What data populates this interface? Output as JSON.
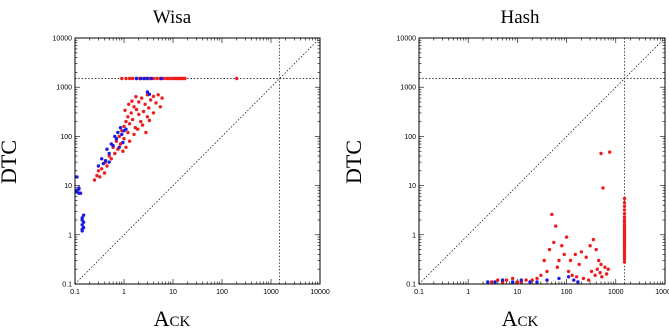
{
  "chart_data": [
    {
      "type": "scatter",
      "title": "Wisa",
      "xlabel": "Ack",
      "ylabel": "DTC",
      "xscale": "log",
      "yscale": "log",
      "xlim": [
        0.1,
        10000
      ],
      "ylim": [
        0.1,
        10000
      ],
      "xticks": [
        "0.1",
        "1",
        "10",
        "100",
        "1000",
        "10000"
      ],
      "yticks": [
        "0.1",
        "1",
        "10",
        "100",
        "1000",
        "10000"
      ],
      "reference": {
        "diagonal": true,
        "x": 1500,
        "y": 1500
      },
      "colors": {
        "red": "#ee1c1c",
        "blue": "#1c1ce0"
      },
      "series": [
        {
          "color": "red",
          "points": [
            [
              0.25,
              13
            ],
            [
              0.28,
              16
            ],
            [
              0.3,
              20
            ],
            [
              0.32,
              15
            ],
            [
              0.35,
              22
            ],
            [
              0.4,
              18
            ],
            [
              0.42,
              30
            ],
            [
              0.45,
              25
            ],
            [
              0.5,
              40
            ],
            [
              0.55,
              35
            ],
            [
              0.6,
              60
            ],
            [
              0.65,
              45
            ],
            [
              0.7,
              80
            ],
            [
              0.75,
              55
            ],
            [
              0.8,
              100
            ],
            [
              0.85,
              70
            ],
            [
              0.9,
              130
            ],
            [
              1.0,
              90
            ],
            [
              1.0,
              160
            ],
            [
              1.1,
              200
            ],
            [
              1.2,
              120
            ],
            [
              1.2,
              250
            ],
            [
              1.3,
              180
            ],
            [
              1.4,
              300
            ],
            [
              1.5,
              220
            ],
            [
              1.6,
              400
            ],
            [
              1.7,
              150
            ],
            [
              1.8,
              350
            ],
            [
              2.0,
              280
            ],
            [
              2.0,
              500
            ],
            [
              2.2,
              200
            ],
            [
              2.3,
              600
            ],
            [
              2.5,
              320
            ],
            [
              2.7,
              450
            ],
            [
              3.0,
              250
            ],
            [
              3.0,
              700
            ],
            [
              3.2,
              380
            ],
            [
              3.5,
              550
            ],
            [
              4.0,
              300
            ],
            [
              4.0,
              650
            ],
            [
              4.5,
              480
            ],
            [
              5.0,
              700
            ],
            [
              5.5,
              400
            ],
            [
              6.0,
              600
            ],
            [
              1.3,
              80
            ],
            [
              1.6,
              110
            ],
            [
              1.9,
              140
            ],
            [
              2.4,
              170
            ],
            [
              1.1,
              60
            ],
            [
              0.95,
              50
            ],
            [
              2.8,
              120
            ],
            [
              3.3,
              210
            ],
            [
              1.05,
              340
            ],
            [
              1.25,
              450
            ],
            [
              1.45,
              520
            ],
            [
              1.75,
              640
            ],
            [
              0.9,
              1500
            ],
            [
              1.1,
              1500
            ],
            [
              1.3,
              1500
            ],
            [
              1.5,
              1500
            ],
            [
              1.8,
              1500
            ],
            [
              2.1,
              1500
            ],
            [
              2.5,
              1500
            ],
            [
              2.9,
              1500
            ],
            [
              3.4,
              1500
            ],
            [
              4.0,
              1500
            ],
            [
              4.7,
              1500
            ],
            [
              5.5,
              1500
            ],
            [
              6.5,
              1500
            ],
            [
              7.5,
              1500
            ],
            [
              8.5,
              1500
            ],
            [
              9.5,
              1500
            ],
            [
              10.5,
              1500
            ],
            [
              11.5,
              1500
            ],
            [
              12.5,
              1500
            ],
            [
              13.5,
              1500
            ],
            [
              14.5,
              1500
            ],
            [
              15.5,
              1500
            ],
            [
              16.5,
              1500
            ],
            [
              17.5,
              1500
            ],
            [
              200,
              1500
            ]
          ]
        },
        {
          "color": "blue",
          "points": [
            [
              0.11,
              15
            ],
            [
              0.11,
              8
            ],
            [
              0.12,
              7
            ],
            [
              0.11,
              7.5
            ],
            [
              0.12,
              8.5
            ],
            [
              0.13,
              7
            ],
            [
              0.12,
              9
            ],
            [
              0.14,
              1.3
            ],
            [
              0.14,
              1.6
            ],
            [
              0.15,
              1.8
            ],
            [
              0.14,
              2.0
            ],
            [
              0.15,
              1.4
            ],
            [
              0.14,
              1.2
            ],
            [
              0.15,
              2.5
            ],
            [
              0.14,
              2.2
            ],
            [
              0.3,
              25
            ],
            [
              0.35,
              35
            ],
            [
              0.38,
              28
            ],
            [
              0.42,
              32
            ],
            [
              0.45,
              55
            ],
            [
              0.5,
              45
            ],
            [
              0.55,
              70
            ],
            [
              0.6,
              65
            ],
            [
              0.7,
              90
            ],
            [
              0.75,
              120
            ],
            [
              0.8,
              60
            ],
            [
              0.85,
              150
            ],
            [
              0.9,
              110
            ],
            [
              1.0,
              130
            ],
            [
              1.1,
              140
            ],
            [
              0.5,
              30
            ],
            [
              0.65,
              100
            ],
            [
              0.95,
              75
            ],
            [
              3.0,
              800
            ],
            [
              3.3,
              720
            ],
            [
              1.8,
              1500
            ],
            [
              2.2,
              1500
            ],
            [
              2.6,
              1500
            ],
            [
              3.0,
              1500
            ],
            [
              3.6,
              1500
            ],
            [
              5.8,
              1500
            ]
          ]
        }
      ]
    },
    {
      "type": "scatter",
      "title": "Hash",
      "xlabel": "Ack",
      "ylabel": "DTC",
      "xscale": "log",
      "yscale": "log",
      "xlim": [
        0.1,
        10000
      ],
      "ylim": [
        0.1,
        10000
      ],
      "xticks": [
        "0.1",
        "1",
        "10",
        "100",
        "1000",
        "10000"
      ],
      "yticks": [
        "0.1",
        "1",
        "10",
        "100",
        "1000",
        "10000"
      ],
      "reference": {
        "diagonal": true,
        "x": 1500,
        "y": 1500
      },
      "colors": {
        "red": "#ee1c1c",
        "blue": "#1c1ce0"
      },
      "series": [
        {
          "color": "red",
          "points": [
            [
              500,
              45
            ],
            [
              750,
              48
            ],
            [
              550,
              9
            ],
            [
              50,
              2.6
            ],
            [
              60,
              1.5
            ],
            [
              55,
              0.7
            ],
            [
              45,
              0.5
            ],
            [
              100,
              0.9
            ],
            [
              80,
              0.6
            ],
            [
              150,
              0.4
            ],
            [
              120,
              0.3
            ],
            [
              200,
              0.45
            ],
            [
              250,
              0.35
            ],
            [
              300,
              0.6
            ],
            [
              400,
              0.5
            ],
            [
              450,
              0.3
            ],
            [
              500,
              0.25
            ],
            [
              600,
              0.22
            ],
            [
              700,
              0.2
            ],
            [
              350,
              0.8
            ],
            [
              180,
              0.25
            ],
            [
              90,
              0.4
            ],
            [
              70,
              0.3
            ],
            [
              40,
              0.18
            ],
            [
              30,
              0.15
            ],
            [
              25,
              0.13
            ],
            [
              20,
              0.12
            ],
            [
              15,
              0.12
            ],
            [
              12,
              0.11
            ],
            [
              10,
              0.11
            ],
            [
              8,
              0.13
            ],
            [
              6,
              0.12
            ],
            [
              5,
              0.11
            ],
            [
              4,
              0.12
            ],
            [
              3,
              0.11
            ],
            [
              35,
              0.3
            ],
            [
              65,
              0.22
            ],
            [
              110,
              0.18
            ],
            [
              130,
              0.15
            ],
            [
              160,
              0.14
            ],
            [
              220,
              0.13
            ],
            [
              280,
              0.12
            ],
            [
              320,
              0.18
            ],
            [
              380,
              0.15
            ],
            [
              420,
              0.2
            ],
            [
              480,
              0.17
            ],
            [
              520,
              0.14
            ],
            [
              650,
              0.16
            ],
            [
              1500,
              5.5
            ],
            [
              1500,
              4.5
            ],
            [
              1500,
              3.8
            ],
            [
              1500,
              3.2
            ],
            [
              1500,
              2.7
            ],
            [
              1500,
              2.3
            ],
            [
              1500,
              2.0
            ],
            [
              1500,
              1.8
            ],
            [
              1500,
              1.6
            ],
            [
              1500,
              1.45
            ],
            [
              1500,
              1.3
            ],
            [
              1500,
              1.2
            ],
            [
              1500,
              1.1
            ],
            [
              1500,
              1.0
            ],
            [
              1500,
              0.9
            ],
            [
              1500,
              0.82
            ],
            [
              1500,
              0.75
            ],
            [
              1500,
              0.68
            ],
            [
              1500,
              0.62
            ],
            [
              1500,
              0.56
            ],
            [
              1500,
              0.5
            ],
            [
              1500,
              0.45
            ],
            [
              1500,
              0.4
            ],
            [
              1500,
              0.36
            ],
            [
              1500,
              0.32
            ],
            [
              1500,
              0.28
            ]
          ]
        },
        {
          "color": "blue",
          "points": [
            [
              2.5,
              0.11
            ],
            [
              3.5,
              0.11
            ],
            [
              5,
              0.12
            ],
            [
              8,
              0.11
            ],
            [
              12,
              0.12
            ],
            [
              18,
              0.11
            ],
            [
              25,
              0.11
            ],
            [
              40,
              0.12
            ],
            [
              70,
              0.13
            ],
            [
              110,
              0.14
            ],
            [
              140,
              0.12
            ],
            [
              170,
              0.11
            ]
          ]
        }
      ]
    }
  ]
}
